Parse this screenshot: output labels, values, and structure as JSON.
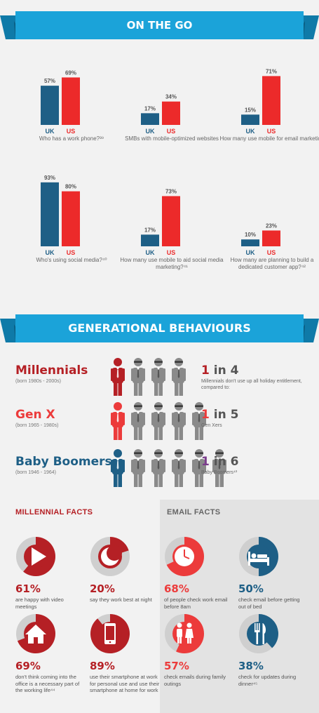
{
  "on_the_go": {
    "title": "ON THE GO",
    "label_uk": "UK",
    "label_us": "US",
    "charts": [
      {
        "uk_label": "57%",
        "us_label": "69%",
        "uk": 57,
        "us": 69,
        "caption": "Who has a work phone?³⁹"
      },
      {
        "uk_label": "17%",
        "us_label": "34%",
        "uk": 17,
        "us": 34,
        "caption": "SMBs with mobile-optimized websites"
      },
      {
        "uk_label": "15%",
        "us_label": "71%",
        "uk": 15,
        "us": 71,
        "caption": "How many use mobile for email marketing"
      },
      {
        "uk_label": "93%",
        "us_label": "80%",
        "uk": 93,
        "us": 80,
        "caption": "Who's using social media?⁴⁰"
      },
      {
        "uk_label": "17%",
        "us_label": "73%",
        "uk": 17,
        "us": 73,
        "caption": "How many use mobile to aid social media marketing?⁴¹"
      },
      {
        "uk_label": "10%",
        "us_label": "23%",
        "uk": 10,
        "us": 23,
        "caption": "How many are planning to build a dedicated customer app?⁴²"
      }
    ]
  },
  "generational": {
    "title": "GENERATIONAL BEHAVIOURS",
    "rows": [
      {
        "name": "Millennials",
        "born": "(born 1980s - 2000s)",
        "ratio_num": "1",
        "ratio_rest": " in 4",
        "desc": "Millennials don't use up all holiday entitlement, compared to:",
        "color": "#b52025",
        "people": 4
      },
      {
        "name": "Gen X",
        "born": "(born 1965 - 1980s)",
        "ratio_num": "1",
        "ratio_rest": " in 5",
        "desc": "Gen Xers",
        "color": "#ec3b3b",
        "people": 5
      },
      {
        "name": "Baby Boomers",
        "born": "(born 1946 - 1964)",
        "ratio_num": "1",
        "ratio_rest": " in 6",
        "desc": "Baby Boomers⁴³",
        "color": "#1e5f86",
        "people": 6
      }
    ],
    "ratio_colors": [
      "#b52025",
      "#ec3b3b",
      "#7a3c8c"
    ]
  },
  "millennial_facts": {
    "title": "MILLENNIAL FACTS",
    "items": [
      {
        "pct": "61%",
        "value": 61,
        "text": "are happy with video meetings",
        "icon": "play-icon"
      },
      {
        "pct": "20%",
        "value": 20,
        "text": "say they work best at night",
        "icon": "moon-icon"
      },
      {
        "pct": "69%",
        "value": 69,
        "text": "don't think coming into the office is a necessary part of the working life⁴⁴",
        "icon": "house-icon"
      },
      {
        "pct": "89%",
        "value": 89,
        "text": "use their smartphone at work for personal use and use their smartphone at home for work",
        "icon": "smartphone-icon"
      }
    ]
  },
  "email_facts": {
    "title": "EMAIL FACTS",
    "items": [
      {
        "pct": "68%",
        "value": 68,
        "text": "of people check work email before 8am",
        "icon": "clock-icon"
      },
      {
        "pct": "50%",
        "value": 50,
        "text": "check email before getting out of bed",
        "icon": "bed-icon"
      },
      {
        "pct": "57%",
        "value": 57,
        "text": "check emails during family outings",
        "icon": "family-icon"
      },
      {
        "pct": "38%",
        "value": 38,
        "text": "check for updates during dinner⁴⁵",
        "icon": "cutlery-icon"
      }
    ]
  },
  "colors": {
    "banner": "#1ba3d9",
    "banner_dark": "#0f7aa8",
    "uk": "#1e5f86",
    "us": "#ec2a2a",
    "millennial": "#b52025",
    "email": "#ec3b3b",
    "donut_bg": "#cfcfcf"
  }
}
